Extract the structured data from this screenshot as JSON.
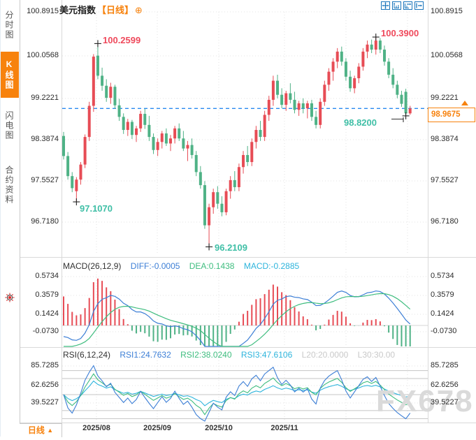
{
  "header": {
    "title": "美元指数",
    "period": "【日线】",
    "plus": "⊕"
  },
  "sidebar": {
    "items": [
      {
        "label": "分时图",
        "active": false
      },
      {
        "label": "K线图",
        "active": true
      },
      {
        "label": "闪电图",
        "active": false
      },
      {
        "label": "合约资料",
        "active": false
      }
    ]
  },
  "main": {
    "y_ticks_text": [
      "100.8915",
      "100.0568",
      "99.2221",
      "98.3874",
      "97.5527",
      "96.7180"
    ],
    "x_labels": [
      "2025/08",
      "2025/09",
      "2025/10",
      "2025/11"
    ],
    "price_box": {
      "label": "98.9675"
    },
    "annotations": [
      {
        "text": "100.2599",
        "value": 100.2599,
        "candle": 8,
        "kind": "high"
      },
      {
        "text": "100.3900",
        "value": 100.39,
        "candle": 73,
        "kind": "high"
      },
      {
        "text": "97.1070",
        "value": 97.107,
        "candle": 3,
        "kind": "low"
      },
      {
        "text": "96.2109",
        "value": 96.2109,
        "candle": 34,
        "kind": "low"
      },
      {
        "text": "98.8200",
        "value": 98.82,
        "candle": 80,
        "kind": "low"
      }
    ]
  },
  "macd_panel": {
    "title": "MACD(26,12,9)",
    "diff": "DIFF:-0.0005",
    "dea": "DEA:0.1438",
    "macd": "MACD:-0.2885",
    "ticks": [
      "0.5734",
      "0.3579",
      "0.1424",
      "-0.0730"
    ]
  },
  "rsi_panel": {
    "title": "RSI(6,12,24)",
    "r1": "RSI1:24.7632",
    "r2": "RSI2:38.0240",
    "r3": "RSI3:47.6106",
    "l20": "L20:20.0000",
    "l30": "L30:30.00",
    "ticks": [
      "85.7285",
      "62.6256",
      "39.5227"
    ]
  },
  "bottom": {
    "tab": "日线",
    "arrow": "▲"
  },
  "watermark": "FX678",
  "colors": {
    "up": "#e74c55",
    "down": "#4fb286",
    "accent_orange": "#f7820d",
    "price_line": "#2a8af0",
    "diff_blue": "#3d7fd6",
    "dea_green": "#3fbd7f",
    "macd_cyan": "#2db4dc",
    "ann_high": "#ef4a5c",
    "ann_low": "#3fbfa6",
    "grid": "#e3e3e3",
    "rsi_level": "#c4c4c4"
  },
  "chart_data": {
    "type": "candlestick",
    "title": "美元指数 日线 (US Dollar Index, daily)",
    "x_labels": [
      "2025/08",
      "2025/09",
      "2025/10",
      "2025/11"
    ],
    "y_ticks": [
      100.8915,
      100.0568,
      99.2221,
      98.3874,
      97.5527,
      96.718
    ],
    "current_price": 98.9675,
    "marked_high": [
      100.2599,
      100.39
    ],
    "marked_low": [
      97.107,
      96.2109,
      98.82
    ],
    "ohlc": [
      [
        98.42,
        98.5,
        97.95,
        98.02
      ],
      [
        98.02,
        98.1,
        97.55,
        97.62
      ],
      [
        97.62,
        97.7,
        97.3,
        97.38
      ],
      [
        97.32,
        97.6,
        97.107,
        97.55
      ],
      [
        97.55,
        97.9,
        97.45,
        97.85
      ],
      [
        97.85,
        98.45,
        97.78,
        98.4
      ],
      [
        98.4,
        99.1,
        98.32,
        99.02
      ],
      [
        99.02,
        100.05,
        98.9,
        100.0
      ],
      [
        100.02,
        100.2599,
        99.55,
        99.62
      ],
      [
        99.62,
        99.78,
        99.32,
        99.42
      ],
      [
        99.42,
        99.55,
        99.1,
        99.18
      ],
      [
        99.18,
        99.48,
        99.06,
        99.4
      ],
      [
        99.4,
        99.44,
        98.96,
        99.03
      ],
      [
        99.03,
        99.16,
        98.72,
        98.8
      ],
      [
        98.8,
        98.87,
        98.46,
        98.54
      ],
      [
        98.54,
        98.76,
        98.42,
        98.7
      ],
      [
        98.7,
        98.74,
        98.36,
        98.44
      ],
      [
        98.44,
        98.62,
        98.3,
        98.57
      ],
      [
        98.57,
        98.92,
        98.5,
        98.86
      ],
      [
        98.86,
        98.96,
        98.56,
        98.64
      ],
      [
        98.64,
        98.82,
        98.32,
        98.4
      ],
      [
        98.4,
        98.47,
        98.06,
        98.14
      ],
      [
        98.14,
        98.37,
        98.02,
        98.3
      ],
      [
        98.3,
        98.52,
        98.17,
        98.47
      ],
      [
        98.47,
        98.57,
        98.22,
        98.27
      ],
      [
        98.27,
        98.44,
        98.12,
        98.37
      ],
      [
        98.37,
        98.62,
        98.27,
        98.57
      ],
      [
        98.57,
        98.67,
        98.32,
        98.37
      ],
      [
        98.37,
        98.52,
        98.12,
        98.17
      ],
      [
        98.17,
        98.32,
        97.92,
        98.24
      ],
      [
        98.24,
        98.37,
        97.97,
        98.04
      ],
      [
        98.04,
        98.12,
        97.62,
        97.7
      ],
      [
        97.7,
        97.82,
        97.37,
        97.44
      ],
      [
        97.44,
        97.52,
        96.57,
        96.64
      ],
      [
        96.64,
        97.07,
        96.2109,
        97.0
      ],
      [
        97.0,
        97.37,
        96.87,
        97.3
      ],
      [
        97.3,
        97.42,
        96.97,
        97.07
      ],
      [
        97.07,
        97.22,
        96.82,
        96.9
      ],
      [
        96.9,
        97.37,
        96.84,
        97.32
      ],
      [
        97.32,
        97.62,
        97.17,
        97.54
      ],
      [
        97.54,
        97.72,
        97.32,
        97.4
      ],
      [
        97.4,
        97.87,
        97.32,
        97.8
      ],
      [
        97.8,
        98.12,
        97.67,
        98.04
      ],
      [
        98.04,
        98.22,
        97.82,
        97.9
      ],
      [
        97.9,
        98.37,
        97.82,
        98.3
      ],
      [
        98.3,
        98.62,
        98.17,
        98.54
      ],
      [
        98.54,
        98.72,
        98.32,
        98.4
      ],
      [
        98.4,
        98.92,
        98.32,
        98.84
      ],
      [
        98.84,
        99.22,
        98.72,
        99.14
      ],
      [
        99.14,
        99.62,
        99.02,
        99.52
      ],
      [
        99.52,
        99.64,
        99.17,
        99.24
      ],
      [
        99.24,
        99.37,
        98.97,
        99.04
      ],
      [
        99.04,
        99.32,
        98.92,
        99.27
      ],
      [
        99.27,
        99.47,
        99.07,
        99.14
      ],
      [
        99.14,
        99.3,
        98.87,
        98.94
      ],
      [
        98.94,
        99.12,
        98.82,
        99.07
      ],
      [
        99.07,
        99.17,
        98.87,
        98.97
      ],
      [
        98.97,
        99.12,
        98.77,
        99.07
      ],
      [
        99.07,
        99.14,
        98.72,
        98.8
      ],
      [
        98.8,
        98.92,
        98.57,
        98.64
      ],
      [
        98.64,
        99.17,
        98.57,
        99.1
      ],
      [
        99.1,
        99.52,
        99.02,
        99.44
      ],
      [
        99.44,
        99.77,
        99.32,
        99.7
      ],
      [
        99.7,
        99.97,
        99.52,
        99.9
      ],
      [
        99.9,
        100.17,
        99.77,
        100.1
      ],
      [
        100.1,
        100.2,
        99.82,
        99.9
      ],
      [
        99.9,
        99.97,
        99.52,
        99.6
      ],
      [
        99.6,
        99.72,
        99.3,
        99.37
      ],
      [
        99.37,
        99.62,
        99.27,
        99.57
      ],
      [
        99.57,
        99.87,
        99.47,
        99.8
      ],
      [
        99.8,
        100.17,
        99.72,
        100.1
      ],
      [
        100.1,
        100.32,
        99.97,
        100.24
      ],
      [
        100.24,
        100.34,
        100.07,
        100.14
      ],
      [
        100.14,
        100.39,
        100.04,
        100.32
      ],
      [
        100.32,
        100.37,
        100.07,
        100.14
      ],
      [
        100.14,
        100.22,
        99.82,
        99.9
      ],
      [
        99.9,
        99.97,
        99.57,
        99.64
      ],
      [
        99.64,
        99.77,
        99.37,
        99.44
      ],
      [
        99.44,
        99.52,
        99.17,
        99.24
      ],
      [
        99.24,
        99.32,
        99.0,
        99.06
      ],
      [
        99.3,
        99.36,
        98.82,
        98.87
      ],
      [
        98.87,
        99.02,
        98.84,
        98.9675
      ]
    ],
    "indicators": {
      "macd": {
        "params": [
          26,
          12,
          9
        ],
        "last": {
          "diff": -0.0005,
          "dea": 0.1438,
          "macd": -0.2885
        },
        "y_ticks": [
          0.5734,
          0.3579,
          0.1424,
          -0.073
        ],
        "seed": {
          "diff": -0.13,
          "dea": -0.3
        }
      },
      "rsi": {
        "params": [
          6,
          12,
          24
        ],
        "last": {
          "rsi1": 24.7632,
          "rsi2": 38.024,
          "rsi3": 47.6106
        },
        "levels": [
          20,
          30,
          50,
          70,
          80
        ],
        "y_ticks": [
          85.7285,
          62.6256,
          39.5227
        ]
      }
    }
  }
}
